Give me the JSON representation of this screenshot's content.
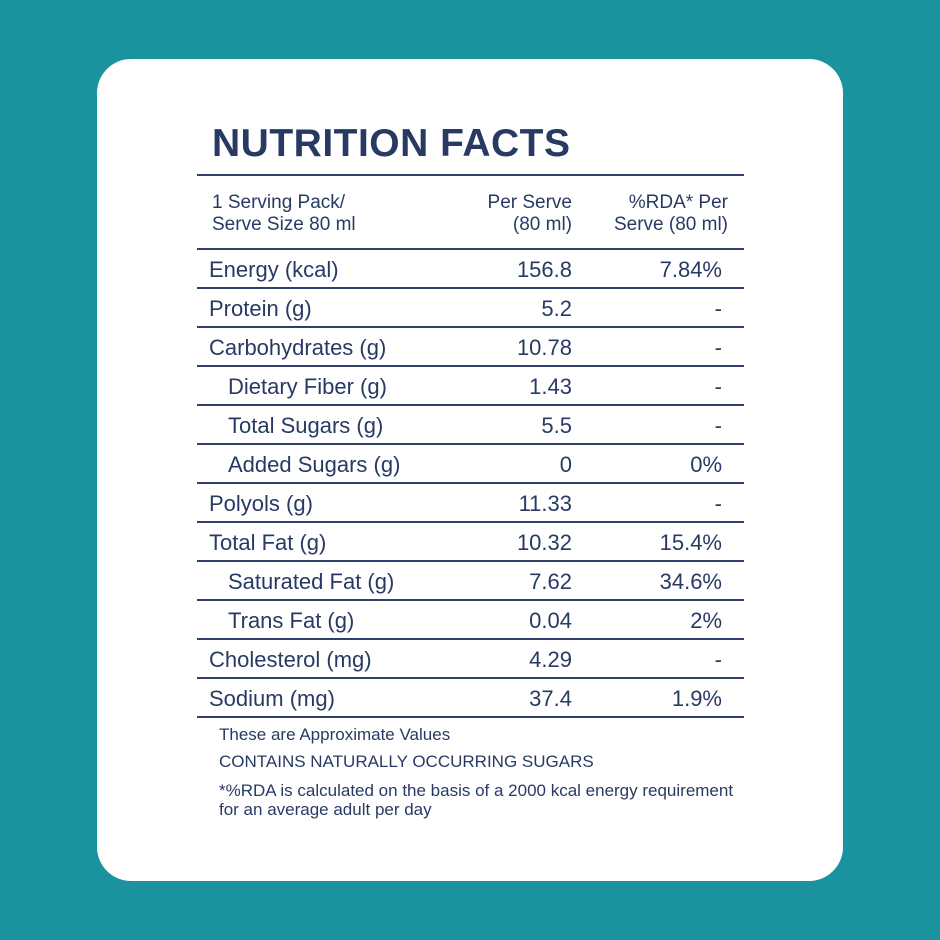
{
  "title": "NUTRITION FACTS",
  "header": {
    "serving": "1 Serving Pack/\nServe Size 80 ml",
    "per_serve": "Per Serve\n(80 ml)",
    "rda": "%RDA* Per\nServe (80 ml)"
  },
  "rows": [
    {
      "name": "Energy (kcal)",
      "per_serve": "156.8",
      "rda": "7.84%",
      "indent": false
    },
    {
      "name": "Protein (g)",
      "per_serve": "5.2",
      "rda": "-",
      "indent": false
    },
    {
      "name": "Carbohydrates (g)",
      "per_serve": "10.78",
      "rda": "-",
      "indent": false
    },
    {
      "name": "Dietary Fiber (g)",
      "per_serve": "1.43",
      "rda": "-",
      "indent": true
    },
    {
      "name": "Total Sugars (g)",
      "per_serve": "5.5",
      "rda": "-",
      "indent": true
    },
    {
      "name": "Added Sugars (g)",
      "per_serve": "0",
      "rda": "0%",
      "indent": true
    },
    {
      "name": "Polyols (g)",
      "per_serve": "11.33",
      "rda": "-",
      "indent": false
    },
    {
      "name": "Total Fat (g)",
      "per_serve": "10.32",
      "rda": "15.4%",
      "indent": false
    },
    {
      "name": "Saturated Fat (g)",
      "per_serve": "7.62",
      "rda": "34.6%",
      "indent": true
    },
    {
      "name": "Trans Fat (g)",
      "per_serve": "0.04",
      "rda": "2%",
      "indent": true
    },
    {
      "name": "Cholesterol (mg)",
      "per_serve": "4.29",
      "rda": "-",
      "indent": false
    },
    {
      "name": "Sodium (mg)",
      "per_serve": "37.4",
      "rda": "1.9%",
      "indent": false
    }
  ],
  "notes": {
    "approx": "These are Approximate Values",
    "sugars": "CONTAINS NATURALLY OCCURRING SUGARS",
    "rda_basis": "*%RDA is calculated on the basis of a 2000 kcal energy requirement for an average adult per day"
  },
  "colors": {
    "background": "#1a939e",
    "card": "#ffffff",
    "text": "#283a64"
  }
}
